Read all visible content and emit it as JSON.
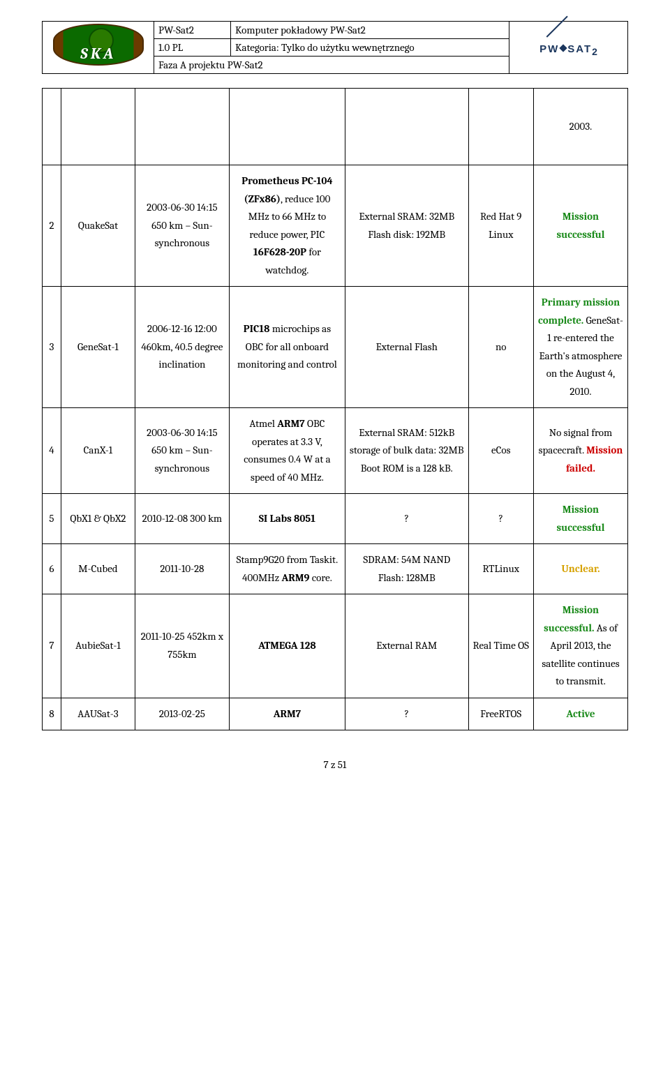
{
  "header": {
    "title_left": "PW-Sat2",
    "title_right": "Komputer pokładowy PW-Sat2",
    "version": "1.0 PL",
    "category": "Kategoria: Tylko do użytku wewnętrznego",
    "phase": "Faza A projektu PW-Sat2",
    "logo_right": "PW·SAT2"
  },
  "top_status": "2003.",
  "rows": [
    {
      "n": "2",
      "name": "QuakeSat",
      "date": "2003-06-30 14:15 650 km – Sun-synchronous",
      "cpu_pre": "Prometheus PC-104 (ZFx86)",
      "cpu_post": ", reduce 100 MHz to 66 MHz to reduce power, PIC ",
      "cpu_bold2": "16F628-20P",
      "cpu_after2": " for watchdog.",
      "mem": "External SRAM: 32MB Flash disk: 192MB",
      "os": "Red Hat 9 Linux",
      "status_g": "Mission successful",
      "status_plain": ""
    },
    {
      "n": "3",
      "name": "GeneSat-1",
      "date": "2006-12-16 12:00 460km, 40.5 degree inclination",
      "cpu_pre": "PIC18",
      "cpu_post": " microchips as OBC for all onboard monitoring and control",
      "mem": "External Flash",
      "os": "no",
      "status_g": "Primary mission complete.",
      "status_plain": " GeneSat-1 re-entered the Earth's atmosphere on the August 4, 2010."
    },
    {
      "n": "4",
      "name": "CanX-1",
      "date": "2003-06-30 14:15 650 km – Sun-synchronous",
      "cpu_pre": "ARM7",
      "cpu_pretext": "Atmel ",
      "cpu_post": " OBC operates at 3.3 V, consumes 0.4 W at a speed of 40 MHz.",
      "mem": "External SRAM: 512kB storage of bulk data: 32MB Boot ROM is a 128 kB.",
      "os": "eCos",
      "status_plain_before": "No signal from spacecraft. ",
      "status_r": "Mission failed."
    },
    {
      "n": "5",
      "name": "QbX1 & QbX2",
      "date": "2010-12-08 300 km",
      "cpu_pre": "SI Labs 8051",
      "mem": "?",
      "os": "?",
      "status_g": "Mission successful"
    },
    {
      "n": "6",
      "name": "M-Cubed",
      "date": "2011-10-28",
      "cpu_plain_before": "Stamp9G20 from Taskit. 400MHz ",
      "cpu_pre": "ARM9",
      "cpu_post": " core.",
      "mem": "SDRAM: 54M NAND Flash: 128MB",
      "os": "RTLinux",
      "status_y": "Unclear."
    },
    {
      "n": "7",
      "name": "AubieSat-1",
      "date": "2011-10-25 452km x 755km",
      "cpu_pre": "ATMEGA 128",
      "mem": "External RAM",
      "os": "Real Time OS",
      "status_g": "Mission successful.",
      "status_plain": " As of April 2013, the satellite continues to transmit."
    },
    {
      "n": "8",
      "name": "AAUSat-3",
      "date": "2013-02-25",
      "cpu_pre": "ARM7",
      "mem": "?",
      "os": "FreeRTOS",
      "status_a": "Active"
    }
  ],
  "footer": "7 z 51"
}
